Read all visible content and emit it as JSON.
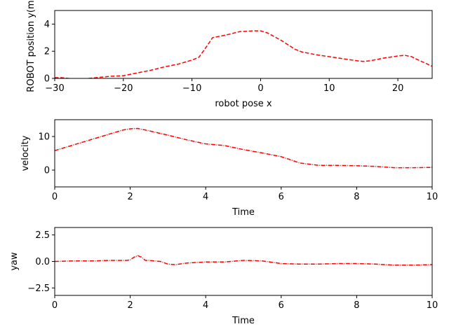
{
  "chart_data": [
    {
      "type": "line",
      "xlabel": "robot pose x",
      "ylabel": "ROBOT position y(m)",
      "xlim": [
        -30,
        25
      ],
      "ylim": [
        0,
        5
      ],
      "xticks": [
        -30,
        -20,
        -10,
        0,
        10,
        20
      ],
      "yticks": [
        0,
        2,
        4
      ],
      "grid": false,
      "series": [
        {
          "color": "#ff0000",
          "line_style": "dashed",
          "x": [
            -30,
            -29,
            -28,
            -26,
            -24,
            -22,
            -20,
            -18,
            -16,
            -14,
            -12,
            -10,
            -9,
            -8,
            -7,
            -5,
            -3,
            -1,
            0,
            1,
            3,
            5,
            6,
            8,
            10,
            12,
            14,
            15,
            16,
            18,
            20,
            21,
            22,
            23,
            25
          ],
          "y": [
            0.05,
            0.05,
            0.0,
            -0.05,
            0.05,
            0.15,
            0.2,
            0.4,
            0.6,
            0.85,
            1.05,
            1.35,
            1.55,
            2.25,
            3.0,
            3.2,
            3.45,
            3.5,
            3.5,
            3.35,
            2.8,
            2.15,
            1.95,
            1.75,
            1.6,
            1.45,
            1.3,
            1.25,
            1.3,
            1.5,
            1.65,
            1.7,
            1.6,
            1.35,
            0.9
          ]
        }
      ]
    },
    {
      "type": "line",
      "xlabel": "Time",
      "ylabel": "velocity",
      "xlim": [
        0,
        10
      ],
      "ylim": [
        -5,
        15
      ],
      "xticks": [
        0,
        2,
        4,
        6,
        8,
        10
      ],
      "yticks": [
        0,
        10
      ],
      "grid": false,
      "series": [
        {
          "color": "#ff0000",
          "line_style": "dashdot",
          "x": [
            0,
            0.5,
            1,
            1.5,
            1.8,
            2,
            2.2,
            2.5,
            3,
            3.5,
            4,
            4.5,
            5,
            5.5,
            6,
            6.5,
            7,
            7.5,
            8,
            8.5,
            9,
            9.5,
            10
          ],
          "y": [
            5.8,
            7.5,
            9.2,
            10.9,
            11.9,
            12.3,
            12.4,
            11.7,
            10.4,
            9.0,
            7.8,
            7.3,
            6.1,
            5.1,
            4.0,
            2.1,
            1.4,
            1.4,
            1.3,
            1.1,
            0.7,
            0.7,
            0.8
          ]
        }
      ]
    },
    {
      "type": "line",
      "xlabel": "Time",
      "ylabel": "yaw",
      "xlim": [
        0,
        10
      ],
      "ylim": [
        -3.2,
        3.2
      ],
      "xticks": [
        0,
        2,
        4,
        6,
        8,
        10
      ],
      "yticks": [
        -2.5,
        0.0,
        2.5
      ],
      "ytick_labels": [
        "−2.5",
        "0.0",
        "2.5"
      ],
      "grid": false,
      "series": [
        {
          "color": "#ff0000",
          "line_style": "dashdot",
          "x": [
            0,
            0.5,
            1,
            1.5,
            1.9,
            2.0,
            2.1,
            2.2,
            2.3,
            2.4,
            2.5,
            2.8,
            3.0,
            3.2,
            3.5,
            4.0,
            4.5,
            5.0,
            5.5,
            5.8,
            6.0,
            6.5,
            7.0,
            7.5,
            8.0,
            8.5,
            9.0,
            9.5,
            10
          ],
          "y": [
            0.0,
            0.05,
            0.05,
            0.1,
            0.1,
            0.15,
            0.4,
            0.55,
            0.4,
            0.1,
            0.1,
            0.0,
            -0.25,
            -0.3,
            -0.15,
            -0.05,
            -0.05,
            0.1,
            0.05,
            -0.1,
            -0.2,
            -0.25,
            -0.25,
            -0.2,
            -0.2,
            -0.25,
            -0.35,
            -0.35,
            -0.3
          ]
        }
      ]
    }
  ]
}
